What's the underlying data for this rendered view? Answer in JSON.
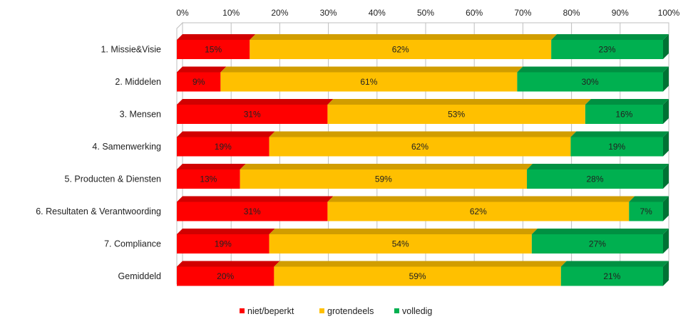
{
  "chart_data": {
    "type": "bar",
    "orientation": "horizontal",
    "stacked": true,
    "percent": true,
    "title": "",
    "xlabel": "",
    "ylabel": "",
    "xlim": [
      0,
      100
    ],
    "x_ticks": [
      "0%",
      "10%",
      "20%",
      "30%",
      "40%",
      "50%",
      "60%",
      "70%",
      "80%",
      "90%",
      "100%"
    ],
    "categories": [
      "1. Missie&Visie",
      "2. Middelen",
      "3. Mensen",
      "4. Samenwerking",
      "5. Producten & Diensten",
      "6. Resultaten & Verantwoording",
      "7. Compliance",
      "Gemiddeld"
    ],
    "series": [
      {
        "name": "niet/beperkt",
        "color": "#ff0000",
        "values": [
          15,
          9,
          31,
          19,
          13,
          31,
          19,
          20
        ]
      },
      {
        "name": "grotendeels",
        "color": "#ffc000",
        "values": [
          62,
          61,
          53,
          62,
          59,
          62,
          54,
          59
        ]
      },
      {
        "name": "volledig",
        "color": "#00b050",
        "values": [
          23,
          30,
          16,
          19,
          28,
          7,
          27,
          21
        ]
      }
    ],
    "data_label_suffix": "%",
    "grid": true,
    "legend_position": "bottom",
    "style": "3d"
  }
}
